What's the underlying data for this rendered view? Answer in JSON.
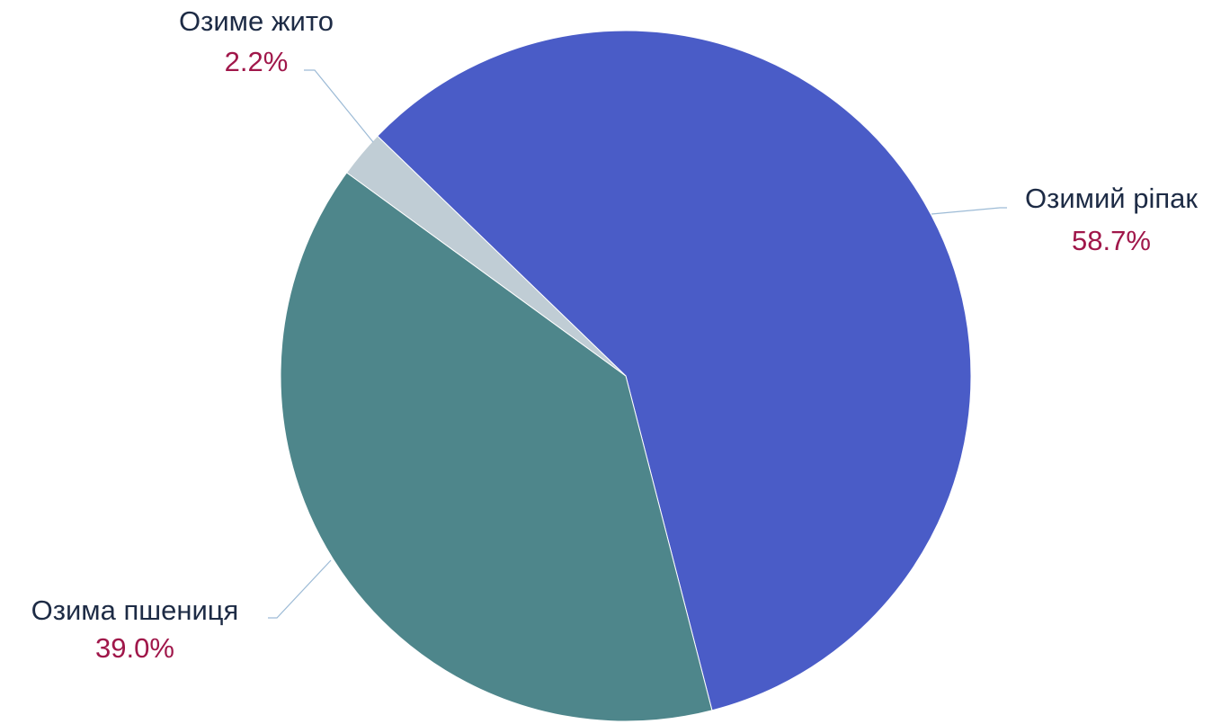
{
  "chart_data": {
    "type": "pie",
    "title": "",
    "slices": [
      {
        "label": "Озимий ріпак",
        "value": 58.7,
        "display": "58.7%",
        "color": "#4a5cc7"
      },
      {
        "label": "Озима пшениця",
        "value": 39.0,
        "display": "39.0%",
        "color": "#4e868b"
      },
      {
        "label": "Озиме жито",
        "value": 2.2,
        "display": "2.2%",
        "color": "#c0cdd5"
      }
    ],
    "legend": "none",
    "data_labels": "outside with leader lines"
  }
}
